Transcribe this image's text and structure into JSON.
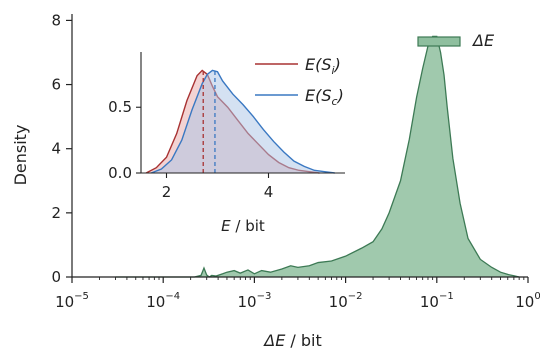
{
  "chart_data": [
    {
      "id": "main",
      "type": "area",
      "xscale": "log",
      "xlim": [
        1e-05,
        1
      ],
      "ylim": [
        0,
        8.2
      ],
      "xlabel_main": "ΔE",
      "xlabel_unit": " / bit",
      "ylabel": "Density",
      "xticks": [
        {
          "base": "10",
          "exp": "−5",
          "value": 1e-05
        },
        {
          "base": "10",
          "exp": "−4",
          "value": 0.0001
        },
        {
          "base": "10",
          "exp": "−3",
          "value": 0.001
        },
        {
          "base": "10",
          "exp": "−2",
          "value": 0.01
        },
        {
          "base": "10",
          "exp": "−1",
          "value": 0.1
        },
        {
          "base": "10",
          "exp": "0",
          "value": 1
        }
      ],
      "yticks": [
        "0",
        "2",
        "4",
        "6",
        "8"
      ],
      "ytick_values": [
        0,
        2,
        4,
        6,
        8
      ],
      "grid": false,
      "legend_position": "top-right",
      "series": [
        {
          "name": "ΔE",
          "fill": "#8fbf9f",
          "line": "#3d7a55",
          "x": [
            3e-05,
            0.0001,
            0.00022,
            0.00026,
            0.00028,
            0.0003,
            0.00032,
            0.00034,
            0.00038,
            0.00045,
            0.0005,
            0.0006,
            0.0007,
            0.00085,
            0.001,
            0.0012,
            0.0015,
            0.002,
            0.0025,
            0.003,
            0.004,
            0.005,
            0.007,
            0.01,
            0.015,
            0.02,
            0.025,
            0.03,
            0.04,
            0.05,
            0.06,
            0.07,
            0.08,
            0.09,
            0.1,
            0.11,
            0.12,
            0.13,
            0.15,
            0.18,
            0.22,
            0.3,
            0.4,
            0.5,
            0.6,
            0.7,
            0.8
          ],
          "y": [
            0,
            0,
            0,
            0.05,
            0.28,
            0.06,
            0,
            0.05,
            0.03,
            0.1,
            0.15,
            0.2,
            0.12,
            0.22,
            0.1,
            0.2,
            0.15,
            0.25,
            0.35,
            0.3,
            0.35,
            0.45,
            0.5,
            0.65,
            0.9,
            1.1,
            1.5,
            2.0,
            3.0,
            4.3,
            5.6,
            6.5,
            7.2,
            7.5,
            7.5,
            7.0,
            6.3,
            5.3,
            3.7,
            2.3,
            1.2,
            0.55,
            0.3,
            0.15,
            0.08,
            0.04,
            0
          ]
        }
      ]
    },
    {
      "id": "inset",
      "type": "area",
      "xlim": [
        1.5,
        5.5
      ],
      "ylim": [
        0,
        0.92
      ],
      "xlabel_main": "E",
      "xlabel_unit": " / bit",
      "xticks": [
        "2",
        "4"
      ],
      "xtick_values": [
        2,
        4
      ],
      "yticks": [
        "0.0",
        "0.5"
      ],
      "ytick_values": [
        0,
        0.5
      ],
      "grid": false,
      "legend_position": "top-right",
      "series": [
        {
          "name_main": "E(S",
          "name_sub": "i",
          "name_end": ")",
          "line": "#a83232",
          "fill": "#e8a8a8",
          "mean": 2.72,
          "x": [
            1.6,
            1.8,
            2.0,
            2.2,
            2.4,
            2.6,
            2.7,
            2.8,
            2.9,
            3.0,
            3.2,
            3.4,
            3.6,
            3.8,
            4.0,
            4.2,
            4.4,
            4.6,
            4.8,
            5.0
          ],
          "y": [
            0,
            0.04,
            0.12,
            0.3,
            0.55,
            0.74,
            0.78,
            0.75,
            0.66,
            0.58,
            0.5,
            0.4,
            0.3,
            0.22,
            0.14,
            0.08,
            0.04,
            0.02,
            0.01,
            0
          ]
        },
        {
          "name_main": "E(S",
          "name_sub": "c",
          "name_end": ")",
          "line": "#3a78c2",
          "fill": "#a9c3e6",
          "mean": 2.95,
          "x": [
            1.7,
            1.9,
            2.1,
            2.3,
            2.5,
            2.7,
            2.8,
            2.9,
            3.0,
            3.1,
            3.3,
            3.5,
            3.7,
            3.9,
            4.1,
            4.3,
            4.5,
            4.7,
            4.9,
            5.1,
            5.3
          ],
          "y": [
            0,
            0.03,
            0.1,
            0.25,
            0.48,
            0.68,
            0.75,
            0.78,
            0.77,
            0.7,
            0.6,
            0.52,
            0.43,
            0.33,
            0.24,
            0.16,
            0.09,
            0.05,
            0.02,
            0.01,
            0
          ]
        }
      ]
    }
  ]
}
